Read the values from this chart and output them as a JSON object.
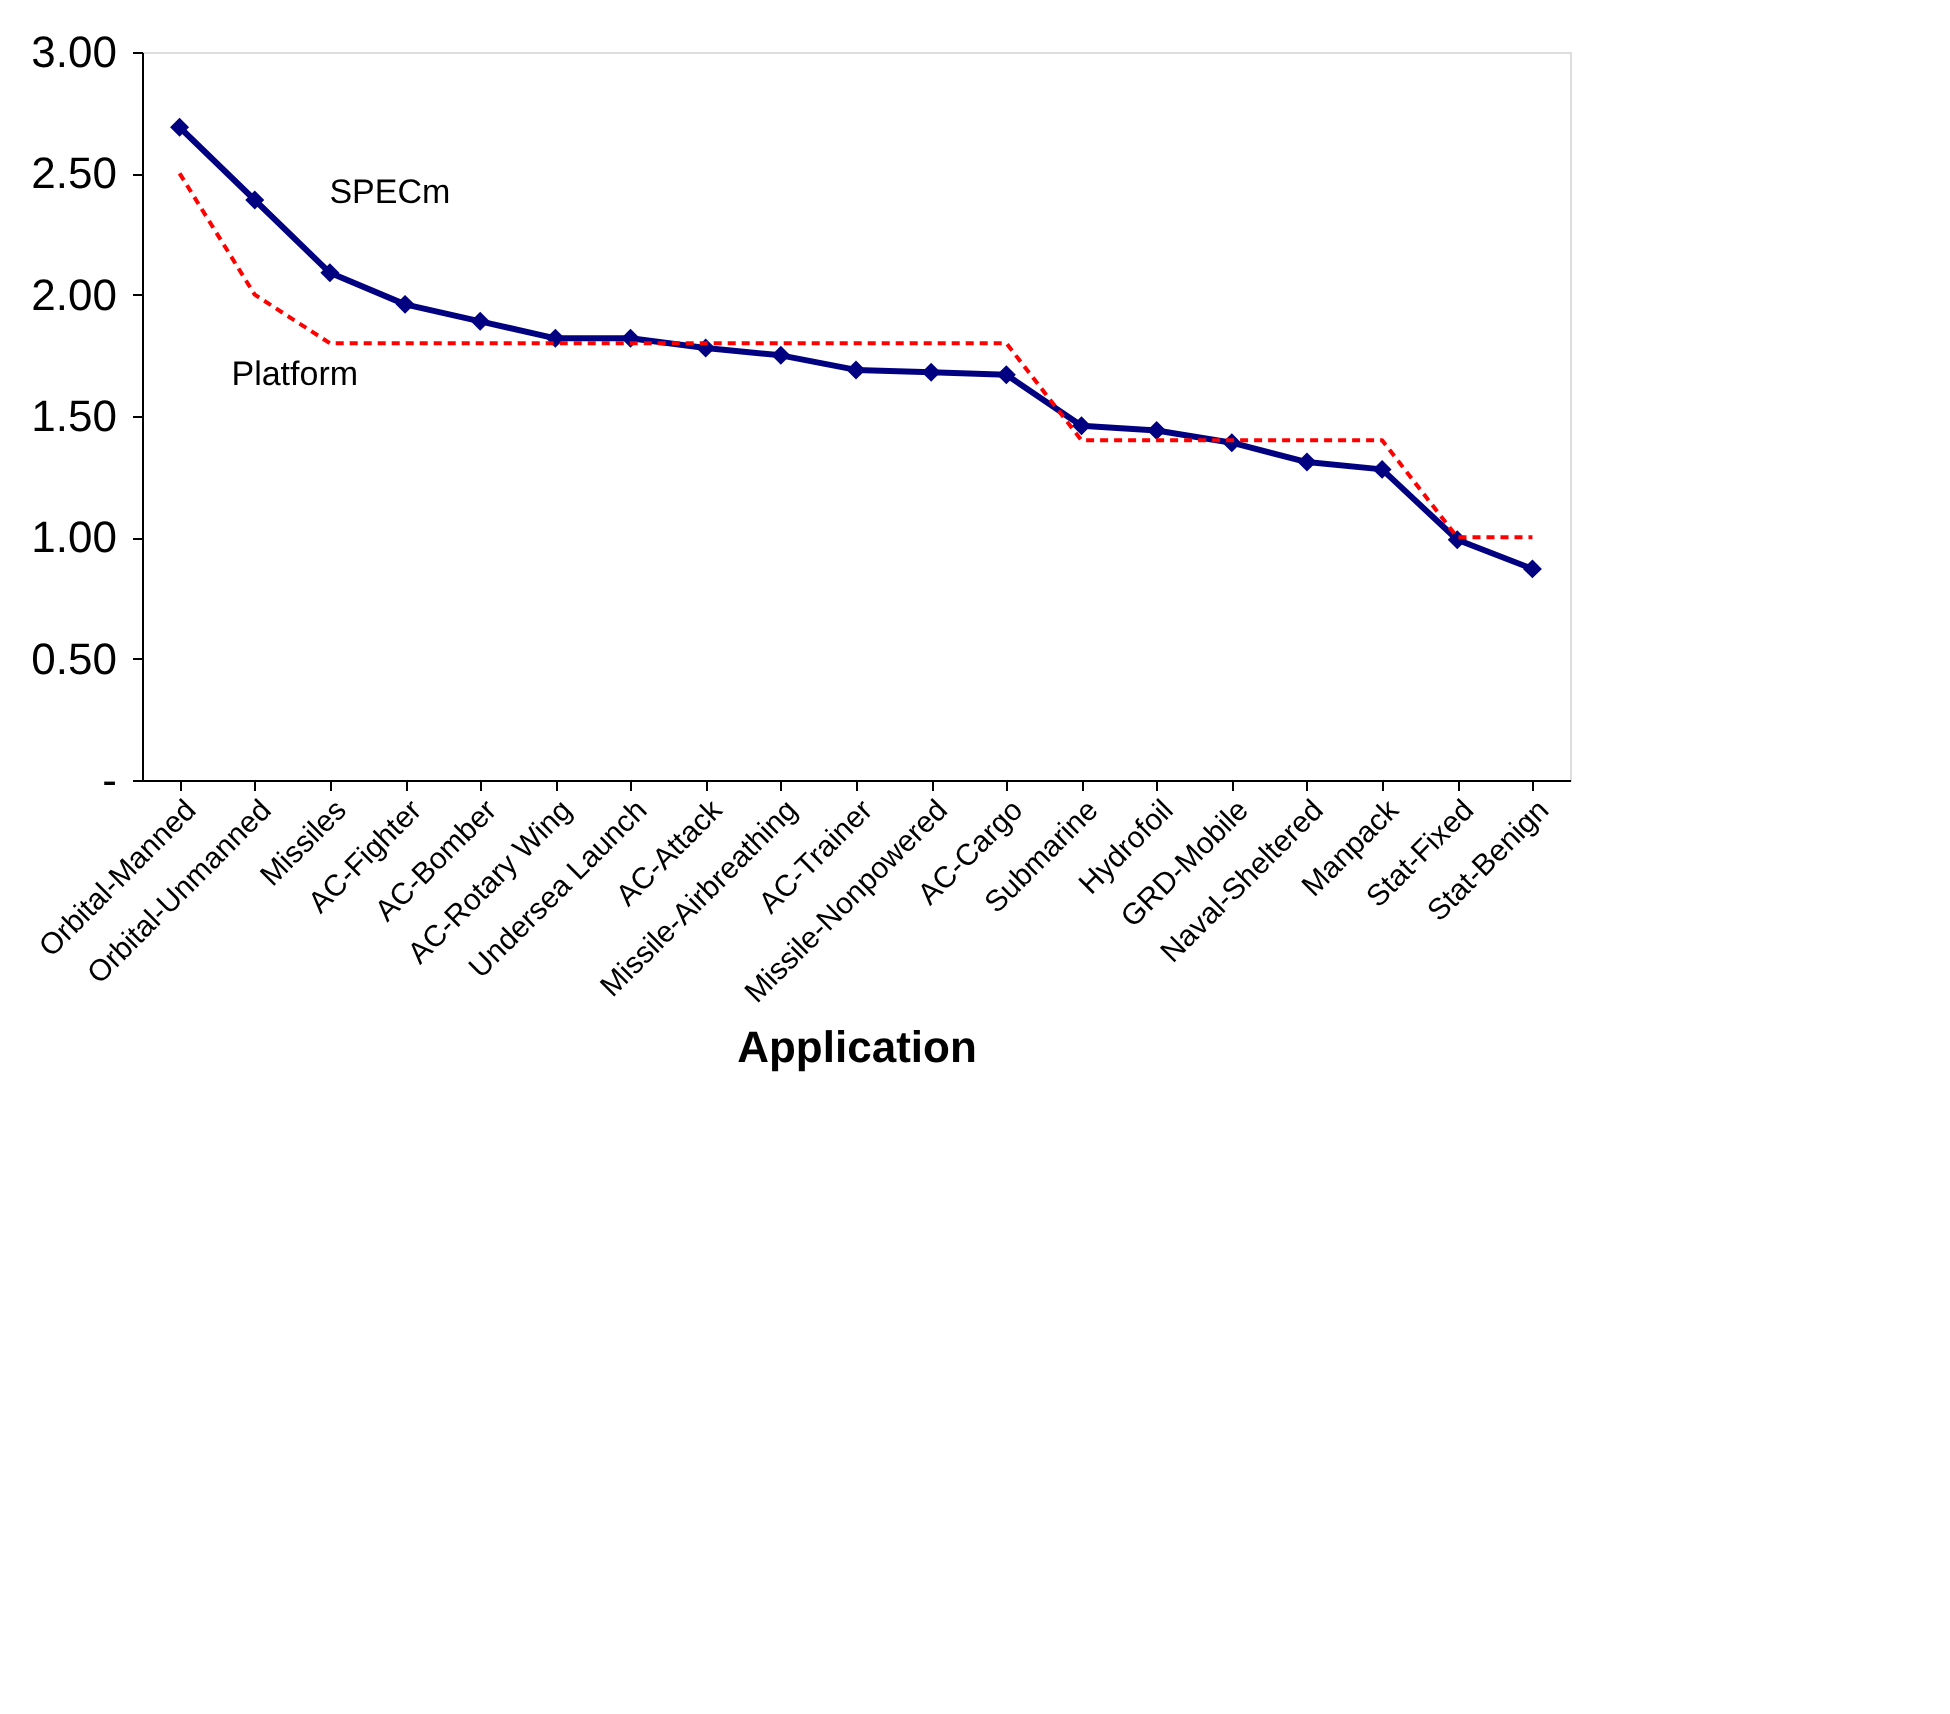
{
  "chart_data": {
    "type": "line",
    "xlabel": "Application",
    "categories": [
      "Orbital-Manned",
      "Orbital-Unmanned",
      "Missiles",
      "AC-Fighter",
      "AC-Bomber",
      "AC-Rotary Wing",
      "Undersea Launch",
      "AC-Attack",
      "Missile-Airbreathing",
      "AC-Trainer",
      "Missile-Nonpowered",
      "AC-Cargo",
      "Submarine",
      "Hydrofoil",
      "GRD-Mobile",
      "Naval-Sheltered",
      "Manpack",
      "Stat-Fixed",
      "Stat-Benign"
    ],
    "series": [
      {
        "name": "SPECm",
        "color": "#000080",
        "marker": "diamond",
        "line_style": "solid",
        "values": [
          2.69,
          2.39,
          2.09,
          1.96,
          1.89,
          1.82,
          1.82,
          1.78,
          1.75,
          1.69,
          1.68,
          1.67,
          1.46,
          1.44,
          1.39,
          1.31,
          1.28,
          0.99,
          0.87
        ]
      },
      {
        "name": "Platform",
        "color": "#ff0000",
        "marker": "none",
        "line_style": "dashed",
        "values": [
          2.5,
          2.0,
          1.8,
          1.8,
          1.8,
          1.8,
          1.8,
          1.8,
          1.8,
          1.8,
          1.8,
          1.8,
          1.4,
          1.4,
          1.4,
          1.4,
          1.4,
          1.0,
          1.0
        ]
      }
    ],
    "ylim": [
      0,
      3
    ],
    "yticks": [
      {
        "value": 0,
        "label": "-"
      },
      {
        "value": 0.5,
        "label": "0.50"
      },
      {
        "value": 1,
        "label": "1.00"
      },
      {
        "value": 1.5,
        "label": "1.50"
      },
      {
        "value": 2,
        "label": "2.00"
      },
      {
        "value": 2.5,
        "label": "2.50"
      },
      {
        "value": 3,
        "label": "3.00"
      }
    ],
    "grid": false
  }
}
